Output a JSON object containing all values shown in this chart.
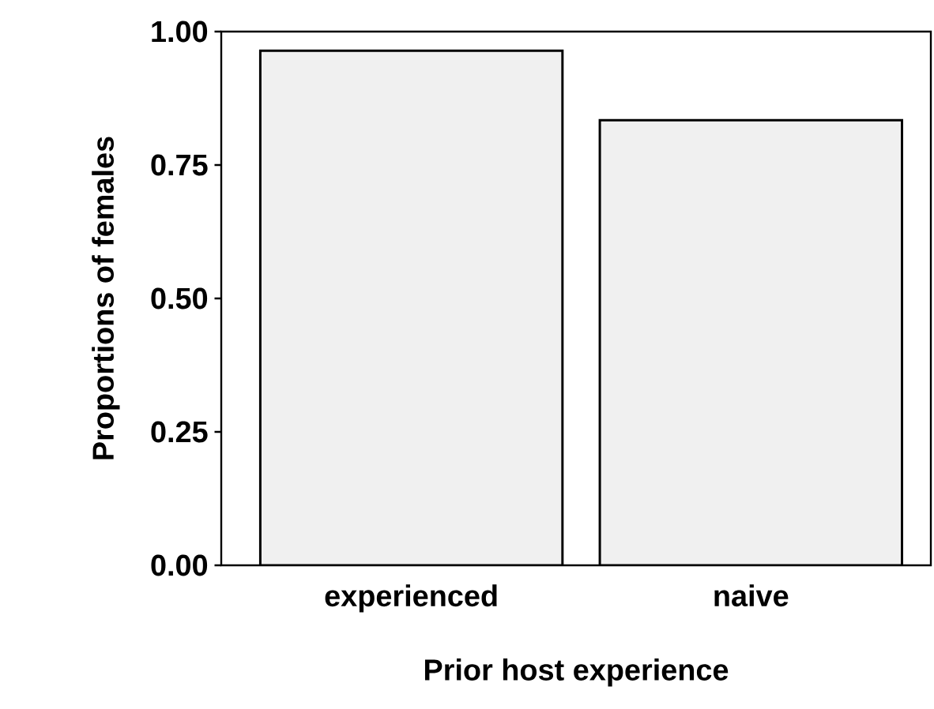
{
  "chart_data": {
    "type": "bar",
    "xlabel": "Prior host experience",
    "ylabel": "Proportions of females",
    "categories": [
      "experienced",
      "naive"
    ],
    "values": [
      0.964,
      0.834
    ],
    "color": "#f0f0f0",
    "ylim": [
      0,
      1
    ],
    "yticks": [
      {
        "value": 0,
        "label": "0.00"
      },
      {
        "value": 0.25,
        "label": "0.25"
      },
      {
        "value": 0.5,
        "label": "0.50"
      },
      {
        "value": 0.75,
        "label": "0.75"
      },
      {
        "value": 1,
        "label": "1.00"
      }
    ],
    "grid": false
  }
}
